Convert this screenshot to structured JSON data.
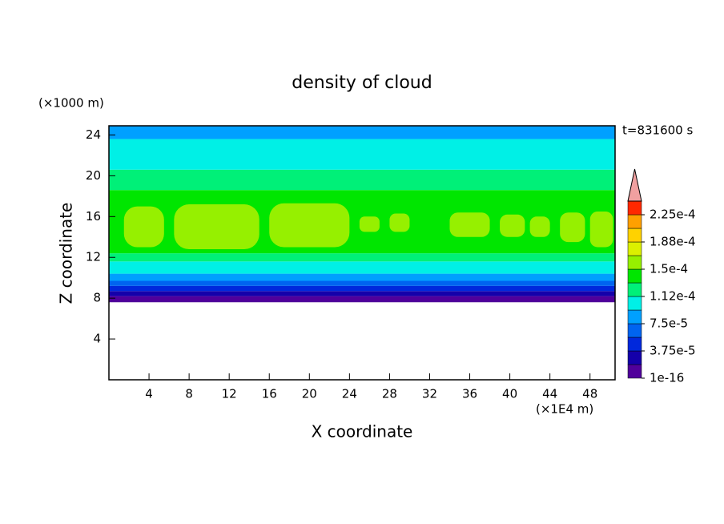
{
  "chart_data": {
    "type": "contour",
    "title": "density of cloud",
    "y_unit": "(×1000 m)",
    "x_unit": "(×1E4 m)",
    "y_label": "Z coordinate",
    "x_label": "X coordinate",
    "time_label": "t=831600 s",
    "xlim": [
      0,
      50.5
    ],
    "ylim": [
      0,
      24.9
    ],
    "xticks": [
      4,
      8,
      12,
      16,
      20,
      24,
      28,
      32,
      36,
      40,
      44,
      48
    ],
    "yticks": [
      4,
      8,
      12,
      16,
      20,
      24
    ],
    "colorbar": {
      "boundaries": [
        1e-16,
        1.875e-05,
        3.75e-05,
        5.625e-05,
        7.5e-05,
        9.375e-05,
        0.0001125,
        0.00013125,
        0.00015,
        0.00016875,
        0.0001875,
        0.00020625,
        0.000225,
        0.00024375
      ],
      "colors": [
        "#50009b",
        "#1400aa",
        "#0028dc",
        "#0064f0",
        "#00a0ff",
        "#00f0e6",
        "#00f078",
        "#00e600",
        "#96f000",
        "#dcf000",
        "#ffd200",
        "#ffa000",
        "#ff2800"
      ],
      "extend_color": "#f0a0a0",
      "labels": [
        {
          "value": 1e-16,
          "label": "1e-16"
        },
        {
          "value": 3.75e-05,
          "label": "3.75e-5"
        },
        {
          "value": 7.5e-05,
          "label": "7.5e-5"
        },
        {
          "value": 0.0001125,
          "label": "1.12e-4"
        },
        {
          "value": 0.00015,
          "label": "1.5e-4"
        },
        {
          "value": 0.0001875,
          "label": "1.88e-4"
        },
        {
          "value": 0.000225,
          "label": "2.25e-4"
        }
      ]
    },
    "bands": [
      {
        "z": [
          7.6,
          8.2
        ],
        "value": 1e-05
      },
      {
        "z": [
          8.2,
          8.7
        ],
        "value": 2.8e-05
      },
      {
        "z": [
          8.7,
          9.2
        ],
        "value": 4.7e-05
      },
      {
        "z": [
          9.2,
          9.7
        ],
        "value": 6.6e-05
      },
      {
        "z": [
          9.7,
          10.4
        ],
        "value": 8.4e-05
      },
      {
        "z": [
          10.4,
          11.6
        ],
        "value": 0.000103
      },
      {
        "z": [
          11.6,
          12.4
        ],
        "value": 0.000122
      },
      {
        "z": [
          12.4,
          18.6
        ],
        "value": 0.00014
      },
      {
        "z": [
          18.6,
          20.6
        ],
        "value": 0.000122
      },
      {
        "z": [
          20.6,
          23.6
        ],
        "value": 0.000103
      },
      {
        "z": [
          23.6,
          24.9
        ],
        "value": 8.4e-05
      }
    ],
    "patches": [
      {
        "x": [
          1.5,
          5.5
        ],
        "z": [
          13,
          17
        ],
        "value": 0.000155
      },
      {
        "x": [
          6.5,
          15
        ],
        "z": [
          12.8,
          17.2
        ],
        "value": 0.000155
      },
      {
        "x": [
          16,
          24
        ],
        "z": [
          13,
          17.3
        ],
        "value": 0.000155
      },
      {
        "x": [
          25,
          27
        ],
        "z": [
          14.5,
          16
        ],
        "value": 0.000155
      },
      {
        "x": [
          28,
          30
        ],
        "z": [
          14.5,
          16.3
        ],
        "value": 0.000155
      },
      {
        "x": [
          34,
          38
        ],
        "z": [
          14,
          16.4
        ],
        "value": 0.000155
      },
      {
        "x": [
          39,
          41.5
        ],
        "z": [
          14,
          16.2
        ],
        "value": 0.000155
      },
      {
        "x": [
          42,
          44
        ],
        "z": [
          14,
          16
        ],
        "value": 0.000155
      },
      {
        "x": [
          45,
          47.5
        ],
        "z": [
          13.5,
          16.4
        ],
        "value": 0.000155
      },
      {
        "x": [
          48,
          50.3
        ],
        "z": [
          13,
          16.5
        ],
        "value": 0.000155
      }
    ]
  }
}
